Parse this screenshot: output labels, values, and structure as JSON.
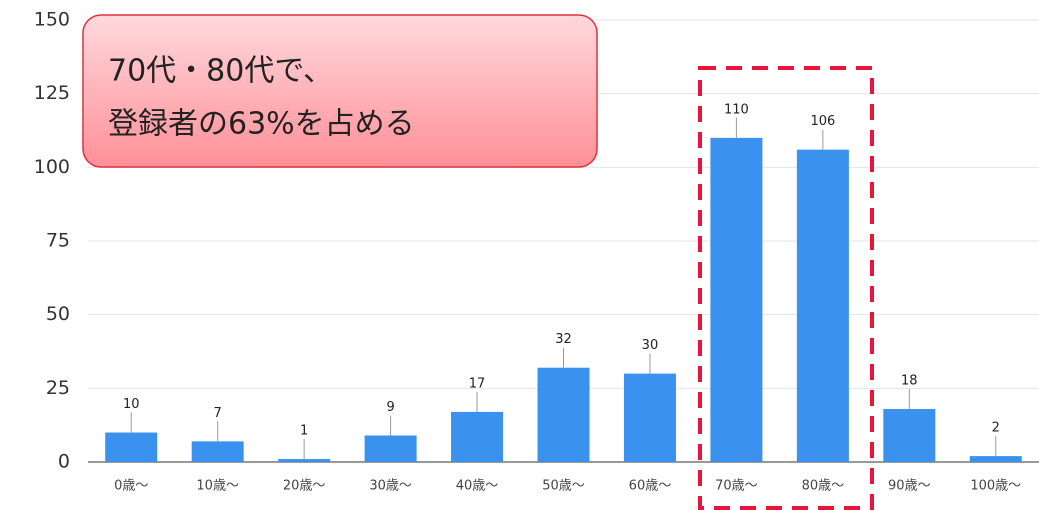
{
  "chart_data": {
    "type": "bar",
    "categories": [
      "0歳〜",
      "10歳〜",
      "20歳〜",
      "30歳〜",
      "40歳〜",
      "50歳〜",
      "60歳〜",
      "70歳〜",
      "80歳〜",
      "90歳〜",
      "100歳〜"
    ],
    "values": [
      10,
      7,
      1,
      9,
      17,
      32,
      30,
      110,
      106,
      18,
      2
    ],
    "color": "#3a92ee",
    "ylim": [
      0,
      150
    ],
    "yticks": [
      0,
      25,
      50,
      75,
      100,
      125,
      150
    ],
    "grid": true,
    "annotation": [
      "70代・80代で、",
      "登録者の63%を占める"
    ]
  }
}
